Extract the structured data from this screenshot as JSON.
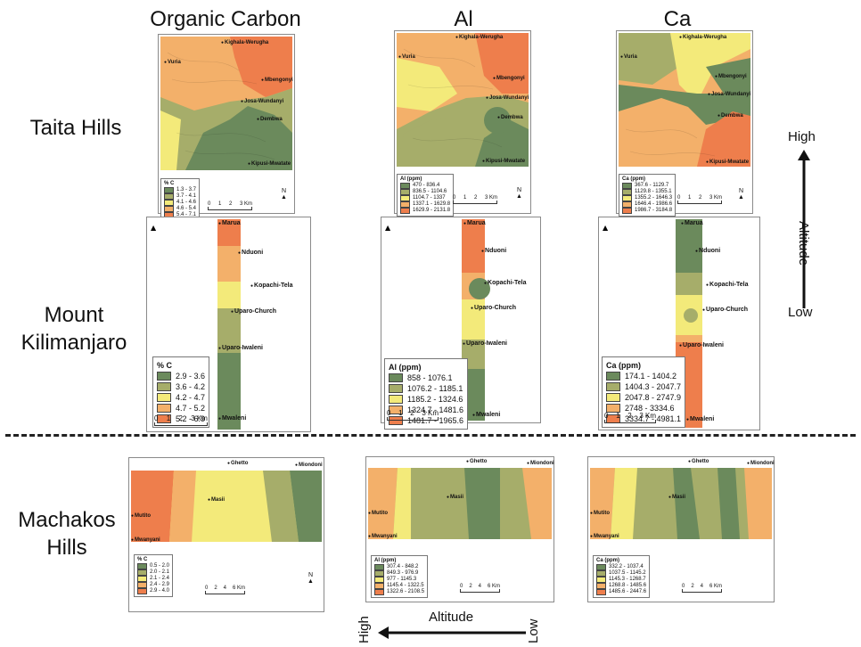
{
  "columns": [
    "Organic Carbon",
    "Al",
    "Ca"
  ],
  "rows": {
    "taita": "Taita Hills",
    "kili": "Mount Kilimanjaro",
    "machakos": "Machakos Hills"
  },
  "altitude_vertical": {
    "label": "Altitude",
    "high": "High",
    "low": "Low"
  },
  "altitude_horizontal": {
    "label": "Altitude",
    "high": "High",
    "low": "Low"
  },
  "colors": [
    "#6b8a5c",
    "#a6ad6a",
    "#f3ea7a",
    "#f3b06a",
    "#ee7e4c"
  ],
  "legends": {
    "taita_oc": {
      "title": "% C",
      "items": [
        "1.3 - 3.7",
        "3.7 - 4.1",
        "4.1 - 4.6",
        "4.6 - 5.4",
        "5.4 - 7.1"
      ]
    },
    "taita_al": {
      "title": "Al (ppm)",
      "items": [
        "470 - 836.4",
        "836.5 - 1104.6",
        "1104.7 - 1337",
        "1337.1 - 1629.8",
        "1629.9 - 2131.8"
      ]
    },
    "taita_ca": {
      "title": "Ca (ppm)",
      "items": [
        "367.6 - 1129.7",
        "1129.8 - 1355.1",
        "1355.2 - 1646.3",
        "1646.4 - 1986.6",
        "1986.7 - 3184.8"
      ]
    },
    "kili_oc": {
      "title": "% C",
      "items": [
        "2.9 - 3.6",
        "3.6 - 4.2",
        "4.2 - 4.7",
        "4.7 - 5.2",
        "5.2 - 6.9"
      ]
    },
    "kili_al": {
      "title": "Al (ppm)",
      "items": [
        "858 - 1076.1",
        "1076.2 - 1185.1",
        "1185.2 - 1324.6",
        "1324.7 - 1481.6",
        "1481.7 - 1965.6"
      ]
    },
    "kili_ca": {
      "title": "Ca (ppm)",
      "items": [
        "174.1 - 1404.2",
        "1404.3 - 2047.7",
        "2047.8 - 2747.9",
        "2748 - 3334.6",
        "3334.7 - 4981.1"
      ]
    },
    "mach_oc": {
      "title": "% C",
      "items": [
        "0.5 - 2.0",
        "2.0 - 2.1",
        "2.1 - 2.4",
        "2.4 - 2.9",
        "2.9 - 4.0"
      ]
    },
    "mach_al": {
      "title": "Al (ppm)",
      "items": [
        "307.4 - 848.2",
        "849.3 - 976.9",
        "977 - 1145.3",
        "1145.4 - 1322.5",
        "1322.6 - 2108.5"
      ]
    },
    "mach_ca": {
      "title": "Ca (ppm)",
      "items": [
        "332.2 - 1037.4",
        "1037.5 - 1145.2",
        "1145.3 - 1268.7",
        "1268.8 - 1485.6",
        "1485.6 - 2447.6"
      ]
    }
  },
  "places": {
    "taita": [
      "Kighala-Werugha",
      "Vuria",
      "Mbengonyi",
      "Josa-Wundanyi",
      "Dembwa",
      "Kipusi-Mwatate"
    ],
    "kili": [
      "Marua",
      "Nduoni",
      "Kopachi-Tela",
      "Uparo-Church",
      "Uparo-Iwaleni",
      "Mwaleni"
    ],
    "machakos": [
      "Ghetto",
      "Miondoni",
      "Masii",
      "Mutito",
      "Mwanyani"
    ]
  },
  "scales": {
    "km3": {
      "labels": [
        "0",
        "1",
        "2",
        "3 Km"
      ]
    },
    "km6": {
      "labels": [
        "0",
        "2",
        "4",
        "6 Km"
      ]
    }
  },
  "north_label": "N"
}
